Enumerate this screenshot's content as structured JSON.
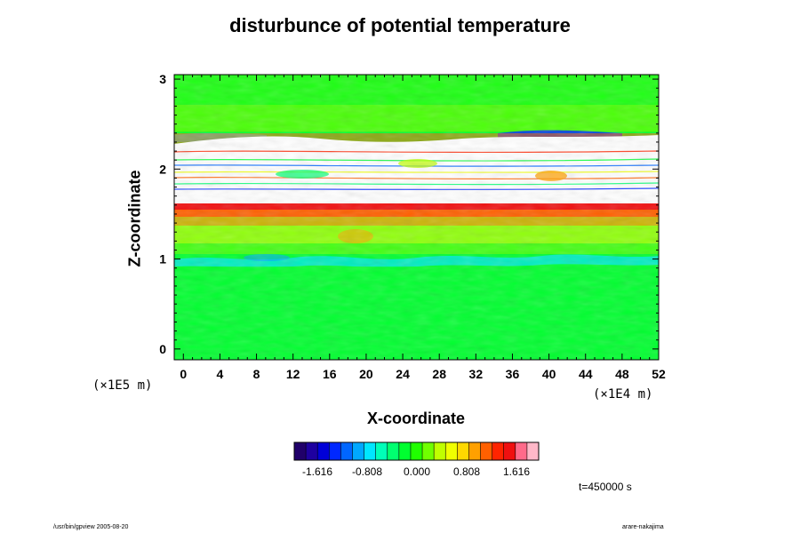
{
  "title": "disturbunce of potential temperature",
  "axes": {
    "x_label": "X-coordinate",
    "y_label": "Z-coordinate",
    "x_unit": "(×1E4 m)",
    "z_unit": "(×1E5 m)"
  },
  "time_label": "t=450000 s",
  "footer": {
    "left": "/usr/bin/gpview 2005-08-20",
    "right": "arare-nakajima"
  },
  "colorbar": {
    "tick_labels": [
      "-1.616",
      "-0.808",
      "0.000",
      "0.808",
      "1.616"
    ],
    "colors": [
      "#20006a",
      "#1e00a0",
      "#0000d8",
      "#0028ff",
      "#0066ff",
      "#00a8ff",
      "#00e6ff",
      "#00ffb8",
      "#00ff70",
      "#00ff30",
      "#20ff00",
      "#70ff00",
      "#c0ff00",
      "#f0ff00",
      "#ffd800",
      "#ffa000",
      "#ff6000",
      "#ff2400",
      "#f01010",
      "#ff6a8a",
      "#ffb8c8"
    ]
  },
  "chart_data": {
    "type": "heatmap",
    "title": "disturbunce of potential temperature",
    "xlabel": "X-coordinate",
    "ylabel": "Z-coordinate",
    "x_ticks": [
      0,
      4,
      8,
      12,
      16,
      20,
      24,
      28,
      32,
      36,
      40,
      44,
      48,
      52
    ],
    "y_ticks": [
      0,
      1,
      2,
      3
    ],
    "xlim": [
      -1,
      52
    ],
    "ylim": [
      -0.12,
      3.05
    ],
    "colorbar_range": [
      -1.616,
      1.616
    ],
    "colorbar_ticks": [
      -1.616,
      -0.808,
      0.0,
      0.808,
      1.616
    ],
    "layers": [
      {
        "z_range": [
          0.0,
          0.95
        ],
        "value": 0.0
      },
      {
        "z_range": [
          0.95,
          1.1
        ],
        "value": -0.4
      },
      {
        "z_range": [
          1.1,
          1.45
        ],
        "value": 0.35
      },
      {
        "z_range": [
          1.45,
          1.6
        ],
        "value": 1.2
      },
      {
        "z_range": [
          1.6,
          1.65
        ],
        "value": 1.7
      },
      {
        "z_range": [
          1.65,
          2.4
        ],
        "value": "out-of-range (white)"
      },
      {
        "z_range": [
          2.4,
          2.6
        ],
        "value": 0.3
      },
      {
        "z_range": [
          2.6,
          3.05
        ],
        "value": 0.05
      }
    ],
    "grid": false
  }
}
